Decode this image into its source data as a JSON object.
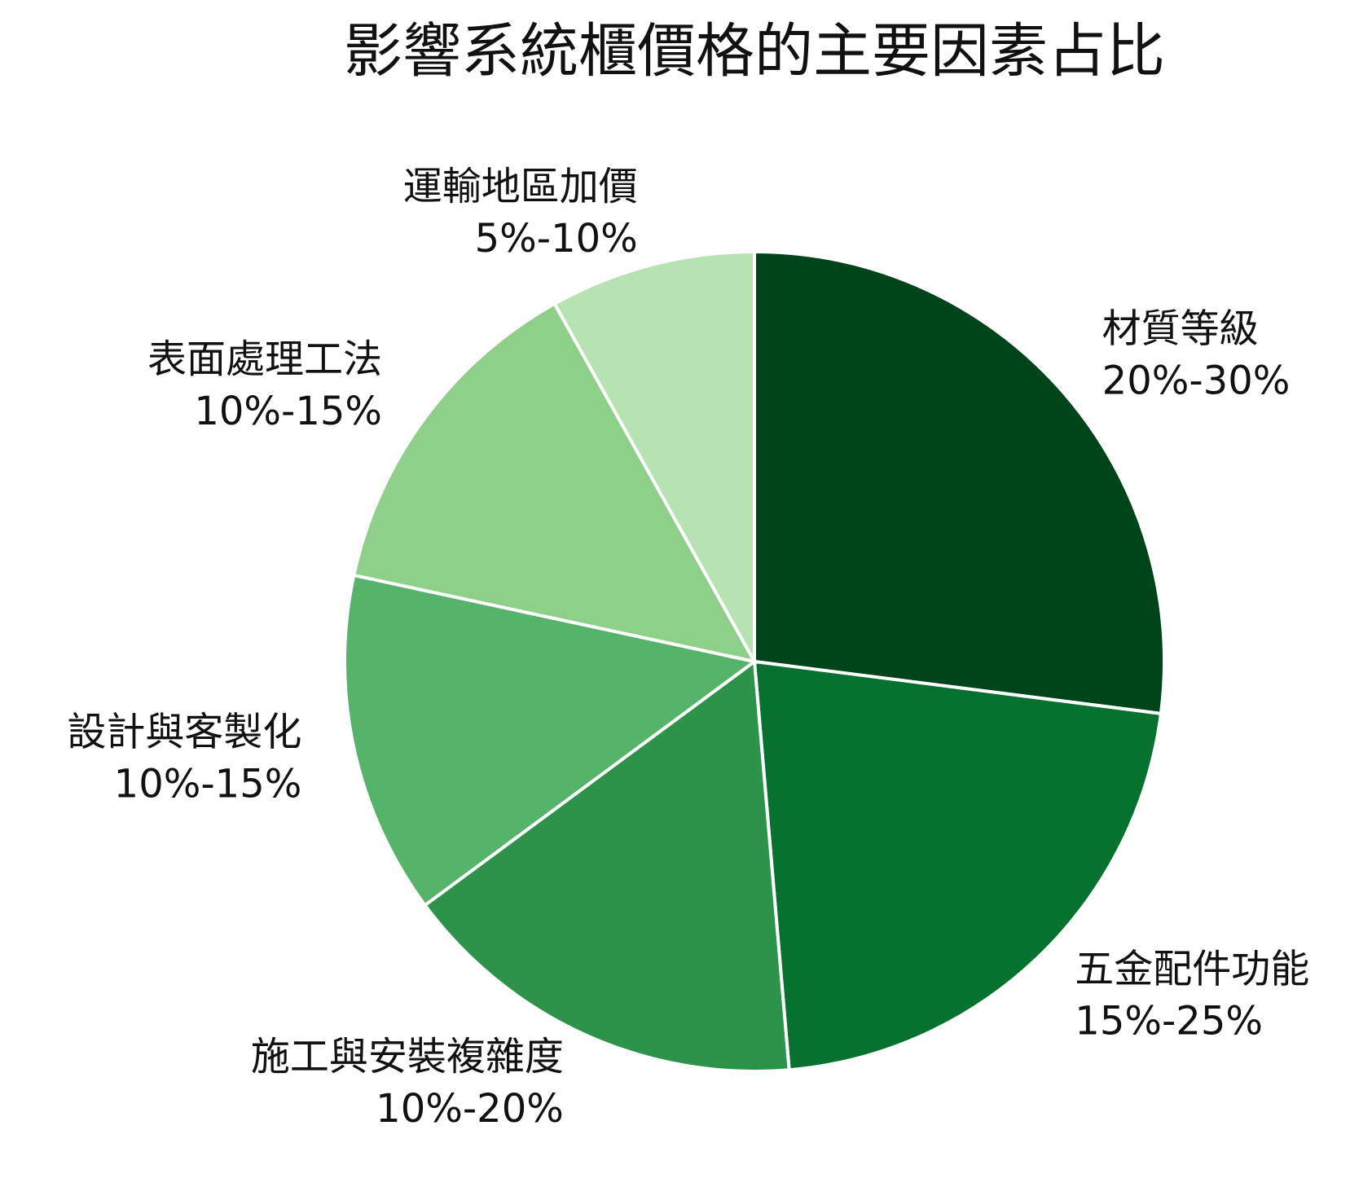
{
  "chart_data": {
    "type": "pie",
    "title": "影響系統櫃價格的主要因素占比",
    "categories": [
      "材質等級",
      "五金配件功能",
      "施工與安裝複雜度",
      "設計與客製化",
      "表面處理工法",
      "運輸地區加價"
    ],
    "values": [
      25,
      20,
      15,
      12.5,
      12.5,
      7.5
    ],
    "value_labels": [
      "20%-30%",
      "15%-25%",
      "10%-20%",
      "10%-15%",
      "10%-15%",
      "5%-10%"
    ],
    "colors": [
      "#00441b",
      "#077230",
      "#2d934b",
      "#55b36a",
      "#8ecf89",
      "#b7e2b1"
    ]
  }
}
